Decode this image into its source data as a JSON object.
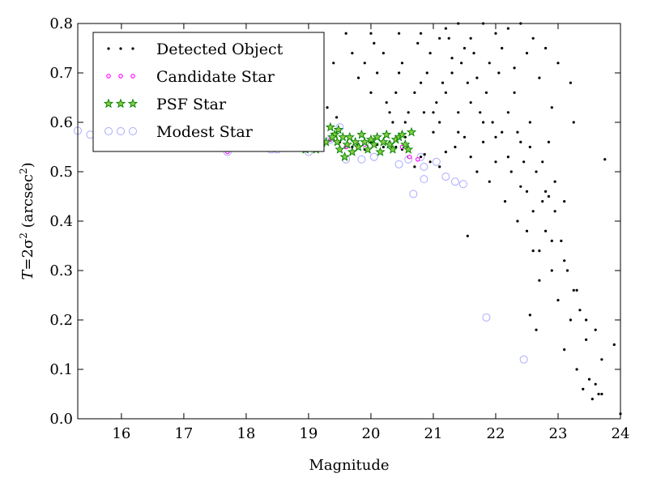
{
  "chart_data": {
    "type": "scatter",
    "xlabel": "Magnitude",
    "ylabel": {
      "prefix": "T",
      "equals": "=2σ",
      "power": "2",
      "unit_open": " (arcsec",
      "unit_power": "2",
      "unit_close": ")"
    },
    "xlim": [
      15.3,
      24.0
    ],
    "ylim": [
      0.0,
      0.8
    ],
    "xticks": [
      16,
      17,
      18,
      19,
      20,
      21,
      22,
      23,
      24
    ],
    "yticks": [
      0.0,
      0.1,
      0.2,
      0.3,
      0.4,
      0.5,
      0.6,
      0.7,
      0.8
    ],
    "ytick_labels": [
      "0.0",
      "0.1",
      "0.2",
      "0.3",
      "0.4",
      "0.5",
      "0.6",
      "0.7",
      "0.8"
    ],
    "grid": false,
    "legend_position": "top-left",
    "series": [
      {
        "name": "Detected Object",
        "marker": "dot",
        "color": "#000000",
        "points": [
          [
            16.4,
            0.55
          ],
          [
            16.9,
            0.548
          ],
          [
            17.6,
            0.548
          ],
          [
            17.9,
            0.545
          ],
          [
            18.6,
            0.55
          ],
          [
            18.8,
            0.555
          ],
          [
            18.9,
            0.545
          ],
          [
            19.05,
            0.56
          ],
          [
            19.15,
            0.55
          ],
          [
            19.25,
            0.56
          ],
          [
            19.3,
            0.63
          ],
          [
            19.45,
            0.61
          ],
          [
            19.5,
            0.56
          ],
          [
            19.62,
            0.55
          ],
          [
            19.7,
            0.55
          ],
          [
            19.8,
            0.555
          ],
          [
            19.9,
            0.545
          ],
          [
            20.0,
            0.56
          ],
          [
            20.1,
            0.555
          ],
          [
            20.2,
            0.55
          ],
          [
            20.3,
            0.56
          ],
          [
            20.4,
            0.55
          ],
          [
            20.5,
            0.545
          ],
          [
            20.55,
            0.57
          ],
          [
            20.6,
            0.53
          ],
          [
            20.7,
            0.51
          ],
          [
            20.8,
            0.53
          ],
          [
            20.86,
            0.535
          ],
          [
            20.95,
            0.52
          ],
          [
            21.1,
            0.51
          ],
          [
            18.55,
            0.64
          ],
          [
            18.75,
            0.67
          ],
          [
            18.95,
            0.7
          ],
          [
            19.0,
            0.76
          ],
          [
            19.15,
            0.78
          ],
          [
            19.4,
            0.72
          ],
          [
            19.6,
            0.78
          ],
          [
            19.7,
            0.74
          ],
          [
            19.8,
            0.69
          ],
          [
            19.9,
            0.72
          ],
          [
            20.0,
            0.66
          ],
          [
            20.05,
            0.76
          ],
          [
            20.0,
            0.78
          ],
          [
            20.1,
            0.7
          ],
          [
            20.2,
            0.74
          ],
          [
            20.25,
            0.64
          ],
          [
            20.3,
            0.62
          ],
          [
            20.35,
            0.6
          ],
          [
            20.4,
            0.66
          ],
          [
            20.45,
            0.7
          ],
          [
            20.45,
            0.78
          ],
          [
            20.5,
            0.72
          ],
          [
            20.55,
            0.6
          ],
          [
            20.6,
            0.62
          ],
          [
            20.7,
            0.66
          ],
          [
            20.75,
            0.76
          ],
          [
            20.8,
            0.78
          ],
          [
            20.85,
            0.62
          ],
          [
            20.9,
            0.7
          ],
          [
            20.95,
            0.74
          ],
          [
            21.0,
            0.58
          ],
          [
            21.05,
            0.64
          ],
          [
            21.1,
            0.6
          ],
          [
            21.15,
            0.68
          ],
          [
            21.2,
            0.66
          ],
          [
            21.25,
            0.77
          ],
          [
            21.3,
            0.7
          ],
          [
            21.35,
            0.55
          ],
          [
            21.4,
            0.62
          ],
          [
            21.45,
            0.72
          ],
          [
            21.5,
            0.57
          ],
          [
            21.55,
            0.68
          ],
          [
            21.6,
            0.53
          ],
          [
            21.65,
            0.74
          ],
          [
            21.7,
            0.5
          ],
          [
            21.75,
            0.62
          ],
          [
            21.8,
            0.56
          ],
          [
            21.85,
            0.66
          ],
          [
            21.9,
            0.48
          ],
          [
            21.95,
            0.6
          ],
          [
            22.0,
            0.52
          ],
          [
            22.05,
            0.7
          ],
          [
            22.1,
            0.58
          ],
          [
            22.15,
            0.44
          ],
          [
            22.2,
            0.62
          ],
          [
            22.25,
            0.5
          ],
          [
            22.3,
            0.66
          ],
          [
            22.35,
            0.4
          ],
          [
            22.4,
            0.56
          ],
          [
            22.45,
            0.52
          ],
          [
            22.5,
            0.46
          ],
          [
            22.55,
            0.6
          ],
          [
            22.6,
            0.34
          ],
          [
            22.65,
            0.5
          ],
          [
            22.7,
            0.28
          ],
          [
            22.75,
            0.44
          ],
          [
            22.8,
            0.38
          ],
          [
            22.85,
            0.56
          ],
          [
            22.9,
            0.3
          ],
          [
            22.95,
            0.42
          ],
          [
            23.0,
            0.24
          ],
          [
            23.05,
            0.36
          ],
          [
            23.1,
            0.14
          ],
          [
            23.15,
            0.3
          ],
          [
            23.2,
            0.2
          ],
          [
            23.25,
            0.26
          ],
          [
            23.3,
            0.1
          ],
          [
            23.35,
            0.22
          ],
          [
            23.4,
            0.06
          ],
          [
            23.45,
            0.16
          ],
          [
            23.5,
            0.08
          ],
          [
            23.55,
            0.04
          ],
          [
            23.6,
            0.18
          ],
          [
            23.65,
            0.05
          ],
          [
            23.7,
            0.12
          ],
          [
            23.75,
            0.525
          ],
          [
            23.9,
            0.15
          ],
          [
            24.0,
            0.01
          ],
          [
            21.2,
            0.79
          ],
          [
            21.4,
            0.8
          ],
          [
            21.6,
            0.77
          ],
          [
            21.8,
            0.8
          ],
          [
            22.0,
            0.78
          ],
          [
            22.2,
            0.79
          ],
          [
            22.4,
            0.8
          ],
          [
            22.6,
            0.77
          ],
          [
            22.8,
            0.75
          ],
          [
            23.0,
            0.72
          ],
          [
            23.2,
            0.68
          ],
          [
            23.25,
            0.6
          ],
          [
            22.9,
            0.63
          ],
          [
            22.7,
            0.69
          ],
          [
            22.5,
            0.74
          ],
          [
            22.3,
            0.71
          ],
          [
            22.1,
            0.75
          ],
          [
            21.9,
            0.72
          ],
          [
            21.7,
            0.69
          ],
          [
            21.5,
            0.75
          ],
          [
            21.3,
            0.73
          ],
          [
            21.1,
            0.77
          ],
          [
            22.35,
            0.58
          ],
          [
            22.55,
            0.55
          ],
          [
            22.75,
            0.52
          ],
          [
            22.95,
            0.48
          ],
          [
            23.1,
            0.44
          ],
          [
            22.8,
            0.46
          ],
          [
            22.6,
            0.42
          ],
          [
            22.4,
            0.47
          ],
          [
            22.2,
            0.53
          ],
          [
            22.0,
            0.57
          ],
          [
            21.8,
            0.6
          ],
          [
            21.6,
            0.64
          ],
          [
            21.4,
            0.58
          ],
          [
            21.2,
            0.54
          ],
          [
            21.0,
            0.62
          ],
          [
            20.8,
            0.68
          ],
          [
            22.5,
            0.38
          ],
          [
            22.7,
            0.34
          ],
          [
            22.9,
            0.36
          ],
          [
            23.1,
            0.32
          ],
          [
            23.3,
            0.26
          ],
          [
            22.55,
            0.21
          ],
          [
            22.65,
            0.18
          ],
          [
            23.45,
            0.2
          ],
          [
            23.6,
            0.07
          ],
          [
            23.7,
            0.05
          ],
          [
            21.55,
            0.37
          ],
          [
            22.85,
            0.45
          ]
        ]
      },
      {
        "name": "Candidate Star",
        "marker": "small-circle",
        "color": "#ff00ff",
        "points": [
          [
            17.7,
            0.54
          ],
          [
            18.4,
            0.55
          ],
          [
            19.1,
            0.555
          ],
          [
            19.35,
            0.565
          ],
          [
            19.6,
            0.55
          ],
          [
            19.9,
            0.555
          ],
          [
            20.3,
            0.555
          ],
          [
            20.5,
            0.55
          ],
          [
            20.62,
            0.53
          ],
          [
            20.75,
            0.525
          ]
        ]
      },
      {
        "name": "PSF Star",
        "marker": "star",
        "color": "#008000",
        "points": [
          [
            19.2,
            0.55
          ],
          [
            19.28,
            0.56
          ],
          [
            19.35,
            0.59
          ],
          [
            19.42,
            0.575
          ],
          [
            19.46,
            0.56
          ],
          [
            19.5,
            0.545
          ],
          [
            19.55,
            0.57
          ],
          [
            19.58,
            0.53
          ],
          [
            19.62,
            0.555
          ],
          [
            19.66,
            0.57
          ],
          [
            19.7,
            0.54
          ],
          [
            19.75,
            0.56
          ],
          [
            19.8,
            0.55
          ],
          [
            19.85,
            0.575
          ],
          [
            19.9,
            0.56
          ],
          [
            19.95,
            0.545
          ],
          [
            20.0,
            0.565
          ],
          [
            20.05,
            0.555
          ],
          [
            20.1,
            0.57
          ],
          [
            20.15,
            0.54
          ],
          [
            20.2,
            0.56
          ],
          [
            20.25,
            0.575
          ],
          [
            20.3,
            0.555
          ],
          [
            20.35,
            0.545
          ],
          [
            20.4,
            0.565
          ],
          [
            20.45,
            0.57
          ],
          [
            20.5,
            0.575
          ],
          [
            20.55,
            0.555
          ],
          [
            20.6,
            0.545
          ],
          [
            20.65,
            0.58
          ],
          [
            18.95,
            0.545
          ],
          [
            19.05,
            0.56
          ],
          [
            19.12,
            0.545
          ],
          [
            19.38,
            0.57
          ],
          [
            19.48,
            0.585
          ]
        ]
      },
      {
        "name": "Modest Star",
        "marker": "open-circle",
        "color": "#aaaaff",
        "points": [
          [
            15.3,
            0.583
          ],
          [
            15.5,
            0.575
          ],
          [
            15.8,
            0.575
          ],
          [
            15.95,
            0.578
          ],
          [
            16.2,
            0.575
          ],
          [
            16.5,
            0.57
          ],
          [
            16.9,
            0.565
          ],
          [
            17.4,
            0.555
          ],
          [
            17.7,
            0.54
          ],
          [
            18.4,
            0.545
          ],
          [
            18.5,
            0.545
          ],
          [
            19.0,
            0.54
          ],
          [
            19.35,
            0.565
          ],
          [
            19.5,
            0.59
          ],
          [
            19.6,
            0.525
          ],
          [
            19.85,
            0.525
          ],
          [
            20.05,
            0.53
          ],
          [
            20.45,
            0.515
          ],
          [
            20.6,
            0.525
          ],
          [
            20.68,
            0.455
          ],
          [
            20.8,
            0.53
          ],
          [
            20.85,
            0.51
          ],
          [
            20.85,
            0.485
          ],
          [
            21.05,
            0.52
          ],
          [
            21.2,
            0.49
          ],
          [
            21.35,
            0.48
          ],
          [
            21.48,
            0.475
          ],
          [
            21.85,
            0.205
          ],
          [
            22.45,
            0.12
          ]
        ]
      }
    ]
  }
}
